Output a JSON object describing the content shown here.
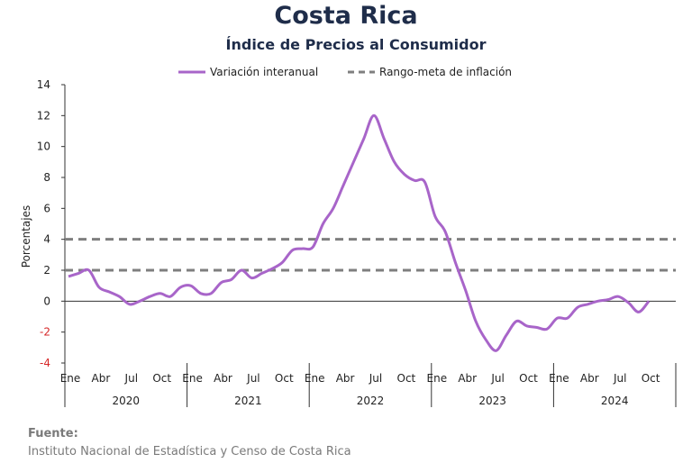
{
  "title": "Costa Rica",
  "subtitle": "Índice de Precios al Consumidor",
  "source": {
    "label": "Fuente:",
    "text": "Instituto Nacional de Estadística y Censo de Costa Rica"
  },
  "colors": {
    "series": "#a865c9",
    "target": "#7f7f7f",
    "axis": "#333333",
    "negative_tick": "#d62728",
    "text": "#1f2d4a"
  },
  "chart_data": {
    "type": "line",
    "title": "Costa Rica",
    "subtitle": "Índice de Precios al Consumidor",
    "ylabel": "Porcentajes",
    "ylim": [
      -4,
      14
    ],
    "yticks": [
      "14",
      "12",
      "10",
      "8",
      "6",
      "4",
      "2",
      "0",
      "-2",
      "-4"
    ],
    "legend": [
      "Variación interanual",
      "Rango-meta de inflación"
    ],
    "legend_position": "top",
    "month_ticks": [
      "Ene",
      "Abr",
      "Jul",
      "Oct"
    ],
    "years": [
      "2020",
      "2021",
      "2022",
      "2023",
      "2024"
    ],
    "series": [
      {
        "name": "Variación interanual",
        "style": "solid",
        "values": [
          1.6,
          1.8,
          2.0,
          0.9,
          0.6,
          0.3,
          -0.2,
          0.0,
          0.3,
          0.5,
          0.3,
          0.9,
          1.0,
          0.5,
          0.5,
          1.2,
          1.4,
          2.0,
          1.5,
          1.8,
          2.1,
          2.5,
          3.3,
          3.4,
          3.5,
          5.0,
          6.0,
          7.5,
          9.0,
          10.5,
          12.0,
          10.5,
          9.0,
          8.2,
          7.8,
          7.7,
          5.5,
          4.5,
          2.5,
          0.7,
          -1.3,
          -2.5,
          -3.2,
          -2.2,
          -1.3,
          -1.6,
          -1.7,
          -1.8,
          -1.1,
          -1.1,
          -0.4,
          -0.2,
          0.0,
          0.1,
          0.3,
          -0.1,
          -0.7,
          0.0
        ]
      },
      {
        "name": "Rango-meta de inflación",
        "style": "dashed",
        "lower": 2,
        "upper": 4
      }
    ]
  }
}
